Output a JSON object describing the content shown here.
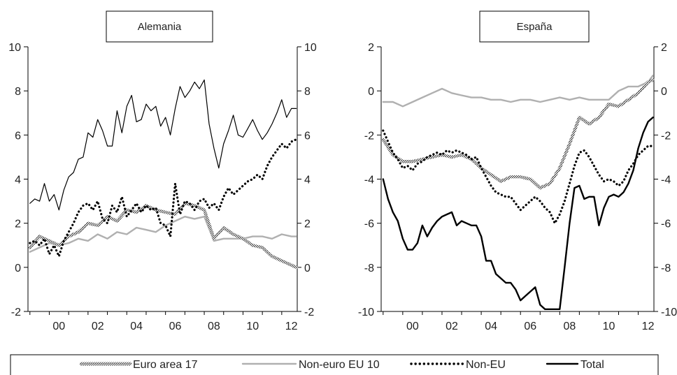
{
  "colors": {
    "euro_area": "#666666",
    "non_euro": "#b0b0b0",
    "non_eu": "#000000",
    "total": "#000000",
    "thin": "#000000",
    "axis": "#000000"
  },
  "legend": [
    {
      "key": "euro_area",
      "label": "Euro area 17",
      "style": "hatched"
    },
    {
      "key": "non_euro",
      "label": "Non-euro EU 10",
      "style": "solid-gray"
    },
    {
      "key": "non_eu",
      "label": "Non-EU",
      "style": "dotted"
    },
    {
      "key": "total",
      "label": "Total",
      "style": "solid-black"
    }
  ],
  "chart_data": [
    {
      "type": "line",
      "title": "Alemania",
      "ylim": [
        -2,
        10
      ],
      "yticks": [
        -2,
        0,
        2,
        4,
        6,
        8,
        10
      ],
      "yticks_right": [
        -2,
        0,
        2,
        4,
        6,
        8,
        10
      ],
      "xlim": [
        1998.9,
        2012.8
      ],
      "xticks": [
        {
          "v": 2000,
          "label": "00"
        },
        {
          "v": 2002,
          "label": "02"
        },
        {
          "v": 2004,
          "label": "04"
        },
        {
          "v": 2006,
          "label": "06"
        },
        {
          "v": 2008,
          "label": "08"
        },
        {
          "v": 2010,
          "label": "10"
        },
        {
          "v": 2012,
          "label": "12"
        }
      ],
      "series": [
        {
          "key": "thin",
          "x": [
            1999.0,
            1999.25,
            1999.5,
            1999.75,
            2000.0,
            2000.25,
            2000.5,
            2000.75,
            2001.0,
            2001.25,
            2001.5,
            2001.75,
            2002.0,
            2002.25,
            2002.5,
            2002.75,
            2003.0,
            2003.25,
            2003.5,
            2003.75,
            2004.0,
            2004.25,
            2004.5,
            2004.75,
            2005.0,
            2005.25,
            2005.5,
            2005.75,
            2006.0,
            2006.25,
            2006.5,
            2006.75,
            2007.0,
            2007.25,
            2007.5,
            2007.75,
            2008.0,
            2008.25,
            2008.5,
            2008.75,
            2009.0,
            2009.25,
            2009.5,
            2009.75,
            2010.0,
            2010.25,
            2010.5,
            2010.75,
            2011.0,
            2011.25,
            2011.5,
            2011.75,
            2012.0,
            2012.25,
            2012.5,
            2012.75
          ],
          "values": [
            2.9,
            3.1,
            3.0,
            3.8,
            3.0,
            3.3,
            2.6,
            3.5,
            4.1,
            4.3,
            4.9,
            5.0,
            6.1,
            5.9,
            6.7,
            6.2,
            5.5,
            5.5,
            7.1,
            6.1,
            7.3,
            7.8,
            6.6,
            6.7,
            7.4,
            7.1,
            7.3,
            6.4,
            6.8,
            6.0,
            7.2,
            8.2,
            7.7,
            8.0,
            8.4,
            8.1,
            8.5,
            6.5,
            5.4,
            4.5,
            5.6,
            6.2,
            6.9,
            6.0,
            5.9,
            6.3,
            6.7,
            6.2,
            5.8,
            6.1,
            6.5,
            7.0,
            7.6,
            6.8,
            7.2,
            7.2
          ]
        },
        {
          "key": "non_euro",
          "x": [
            1999.0,
            1999.5,
            2000.0,
            2000.5,
            2001.0,
            2001.5,
            2002.0,
            2002.5,
            2003.0,
            2003.5,
            2004.0,
            2004.5,
            2005.0,
            2005.5,
            2006.0,
            2006.5,
            2007.0,
            2007.5,
            2008.0,
            2008.5,
            2009.0,
            2009.5,
            2010.0,
            2010.5,
            2011.0,
            2011.5,
            2012.0,
            2012.5,
            2012.75
          ],
          "values": [
            0.7,
            0.9,
            1.1,
            1.0,
            1.1,
            1.3,
            1.2,
            1.5,
            1.3,
            1.6,
            1.5,
            1.8,
            1.7,
            1.6,
            1.9,
            2.1,
            2.3,
            2.2,
            2.3,
            1.2,
            1.3,
            1.3,
            1.3,
            1.4,
            1.4,
            1.3,
            1.5,
            1.4,
            1.4
          ]
        },
        {
          "key": "euro_area",
          "x": [
            1999.0,
            1999.5,
            2000.0,
            2000.5,
            2001.0,
            2001.5,
            2002.0,
            2002.5,
            2003.0,
            2003.5,
            2004.0,
            2004.5,
            2005.0,
            2005.5,
            2006.0,
            2006.5,
            2007.0,
            2007.5,
            2008.0,
            2008.5,
            2009.0,
            2009.5,
            2010.0,
            2010.5,
            2011.0,
            2011.5,
            2012.0,
            2012.5,
            2012.75
          ],
          "values": [
            0.9,
            1.4,
            1.2,
            1.0,
            1.4,
            1.6,
            2.0,
            1.9,
            2.3,
            2.1,
            2.6,
            2.5,
            2.8,
            2.6,
            2.5,
            2.4,
            2.9,
            2.8,
            2.6,
            1.3,
            1.8,
            1.5,
            1.3,
            1.0,
            0.9,
            0.5,
            0.3,
            0.1,
            0.0
          ]
        },
        {
          "key": "non_eu",
          "x": [
            1999.0,
            1999.25,
            1999.5,
            1999.75,
            2000.0,
            2000.25,
            2000.5,
            2000.75,
            2001.0,
            2001.25,
            2001.5,
            2001.75,
            2002.0,
            2002.25,
            2002.5,
            2002.75,
            2003.0,
            2003.25,
            2003.5,
            2003.75,
            2004.0,
            2004.25,
            2004.5,
            2004.75,
            2005.0,
            2005.25,
            2005.5,
            2005.75,
            2006.0,
            2006.25,
            2006.5,
            2006.75,
            2007.0,
            2007.25,
            2007.5,
            2007.75,
            2008.0,
            2008.25,
            2008.5,
            2008.75,
            2009.0,
            2009.25,
            2009.5,
            2009.75,
            2010.0,
            2010.25,
            2010.5,
            2010.75,
            2011.0,
            2011.25,
            2011.5,
            2011.75,
            2012.0,
            2012.25,
            2012.5,
            2012.75
          ],
          "values": [
            1.1,
            1.2,
            1.0,
            1.3,
            0.6,
            1.0,
            0.5,
            1.2,
            1.6,
            2.0,
            2.5,
            2.8,
            2.9,
            2.6,
            3.0,
            2.2,
            2.0,
            2.8,
            2.5,
            3.2,
            2.3,
            2.6,
            2.9,
            2.5,
            2.8,
            2.6,
            2.7,
            2.0,
            1.9,
            1.4,
            3.8,
            2.4,
            3.0,
            2.9,
            2.6,
            3.0,
            3.1,
            2.7,
            2.9,
            2.6,
            3.2,
            3.6,
            3.3,
            3.5,
            3.7,
            3.9,
            4.0,
            4.2,
            4.0,
            4.6,
            5.0,
            5.3,
            5.6,
            5.4,
            5.7,
            5.8
          ]
        }
      ]
    },
    {
      "type": "line",
      "title": "España",
      "ylim": [
        -10,
        2
      ],
      "yticks": [
        -10,
        -8,
        -6,
        -4,
        -2,
        0,
        2
      ],
      "yticks_right": [
        -10,
        -8,
        -6,
        -4,
        -2,
        0,
        2
      ],
      "xlim": [
        1998.9,
        2012.8
      ],
      "xticks": [
        {
          "v": 2000,
          "label": "00"
        },
        {
          "v": 2002,
          "label": "02"
        },
        {
          "v": 2004,
          "label": "04"
        },
        {
          "v": 2006,
          "label": "06"
        },
        {
          "v": 2008,
          "label": "08"
        },
        {
          "v": 2010,
          "label": "10"
        },
        {
          "v": 2012,
          "label": "12"
        }
      ],
      "series": [
        {
          "key": "non_euro",
          "x": [
            1999.0,
            1999.5,
            2000.0,
            2000.5,
            2001.0,
            2001.5,
            2002.0,
            2002.5,
            2003.0,
            2003.5,
            2004.0,
            2004.5,
            2005.0,
            2005.5,
            2006.0,
            2006.5,
            2007.0,
            2007.5,
            2008.0,
            2008.5,
            2009.0,
            2009.5,
            2010.0,
            2010.5,
            2011.0,
            2011.5,
            2012.0,
            2012.5,
            2012.75
          ],
          "values": [
            -0.5,
            -0.5,
            -0.7,
            -0.5,
            -0.3,
            -0.1,
            0.1,
            -0.1,
            -0.2,
            -0.3,
            -0.3,
            -0.4,
            -0.4,
            -0.5,
            -0.4,
            -0.4,
            -0.5,
            -0.4,
            -0.3,
            -0.4,
            -0.3,
            -0.4,
            -0.4,
            -0.4,
            0.0,
            0.2,
            0.2,
            0.4,
            0.7
          ]
        },
        {
          "key": "euro_area",
          "x": [
            1999.0,
            1999.5,
            2000.0,
            2000.5,
            2001.0,
            2001.5,
            2002.0,
            2002.5,
            2003.0,
            2003.5,
            2004.0,
            2004.5,
            2005.0,
            2005.5,
            2006.0,
            2006.5,
            2007.0,
            2007.5,
            2008.0,
            2008.5,
            2009.0,
            2009.5,
            2010.0,
            2010.5,
            2011.0,
            2011.5,
            2012.0,
            2012.5,
            2012.75
          ],
          "values": [
            -2.2,
            -2.9,
            -3.2,
            -3.2,
            -3.1,
            -3.0,
            -2.9,
            -3.0,
            -2.9,
            -3.1,
            -3.5,
            -3.8,
            -4.1,
            -3.9,
            -3.9,
            -4.0,
            -4.4,
            -4.2,
            -3.5,
            -2.4,
            -1.2,
            -1.5,
            -1.2,
            -0.6,
            -0.7,
            -0.4,
            -0.1,
            0.4,
            0.5
          ]
        },
        {
          "key": "non_eu",
          "x": [
            1999.0,
            1999.25,
            1999.5,
            1999.75,
            2000.0,
            2000.25,
            2000.5,
            2000.75,
            2001.0,
            2001.25,
            2001.5,
            2001.75,
            2002.0,
            2002.25,
            2002.5,
            2002.75,
            2003.0,
            2003.25,
            2003.5,
            2003.75,
            2004.0,
            2004.25,
            2004.5,
            2004.75,
            2005.0,
            2005.25,
            2005.5,
            2005.75,
            2006.0,
            2006.25,
            2006.5,
            2006.75,
            2007.0,
            2007.25,
            2007.5,
            2007.75,
            2008.0,
            2008.25,
            2008.5,
            2008.75,
            2009.0,
            2009.25,
            2009.5,
            2009.75,
            2010.0,
            2010.25,
            2010.5,
            2010.75,
            2011.0,
            2011.25,
            2011.5,
            2011.75,
            2012.0,
            2012.25,
            2012.5,
            2012.75
          ],
          "values": [
            -1.8,
            -2.3,
            -2.8,
            -3.1,
            -3.5,
            -3.4,
            -3.6,
            -3.3,
            -3.2,
            -3.0,
            -2.9,
            -2.8,
            -2.9,
            -2.7,
            -2.8,
            -2.7,
            -2.8,
            -2.9,
            -3.1,
            -3.0,
            -3.5,
            -3.9,
            -4.3,
            -4.6,
            -4.7,
            -4.8,
            -4.8,
            -5.1,
            -5.4,
            -5.2,
            -5.0,
            -4.8,
            -5.0,
            -5.3,
            -5.5,
            -6.0,
            -5.6,
            -5.0,
            -4.2,
            -3.4,
            -2.8,
            -2.7,
            -3.0,
            -3.4,
            -3.8,
            -4.1,
            -4.0,
            -4.1,
            -4.3,
            -4.1,
            -3.6,
            -3.3,
            -2.9,
            -2.7,
            -2.5,
            -2.5
          ]
        },
        {
          "key": "total",
          "x": [
            1999.0,
            1999.25,
            1999.5,
            1999.75,
            2000.0,
            2000.25,
            2000.5,
            2000.75,
            2001.0,
            2001.25,
            2001.5,
            2001.75,
            2002.0,
            2002.25,
            2002.5,
            2002.75,
            2003.0,
            2003.25,
            2003.5,
            2003.75,
            2004.0,
            2004.25,
            2004.5,
            2004.75,
            2005.0,
            2005.25,
            2005.5,
            2005.75,
            2006.0,
            2006.25,
            2006.5,
            2006.75,
            2007.0,
            2007.25,
            2007.5,
            2007.75,
            2008.0,
            2008.25,
            2008.5,
            2008.75,
            2009.0,
            2009.25,
            2009.5,
            2009.75,
            2010.0,
            2010.25,
            2010.5,
            2010.75,
            2011.0,
            2011.25,
            2011.5,
            2011.75,
            2012.0,
            2012.25,
            2012.5,
            2012.75
          ],
          "values": [
            -4.0,
            -4.9,
            -5.5,
            -5.9,
            -6.7,
            -7.2,
            -7.2,
            -6.9,
            -6.1,
            -6.6,
            -6.2,
            -5.9,
            -5.7,
            -5.6,
            -5.5,
            -6.1,
            -5.9,
            -6.0,
            -6.1,
            -6.1,
            -6.6,
            -7.7,
            -7.7,
            -8.3,
            -8.5,
            -8.7,
            -8.7,
            -9.0,
            -9.5,
            -9.3,
            -9.1,
            -8.9,
            -9.7,
            -9.9,
            -9.9,
            -9.9,
            -9.9,
            -8.0,
            -6.0,
            -4.4,
            -4.3,
            -4.9,
            -4.8,
            -4.8,
            -6.1,
            -5.3,
            -4.8,
            -4.7,
            -4.8,
            -4.6,
            -4.2,
            -3.6,
            -2.6,
            -1.9,
            -1.4,
            -1.2
          ]
        }
      ]
    }
  ]
}
